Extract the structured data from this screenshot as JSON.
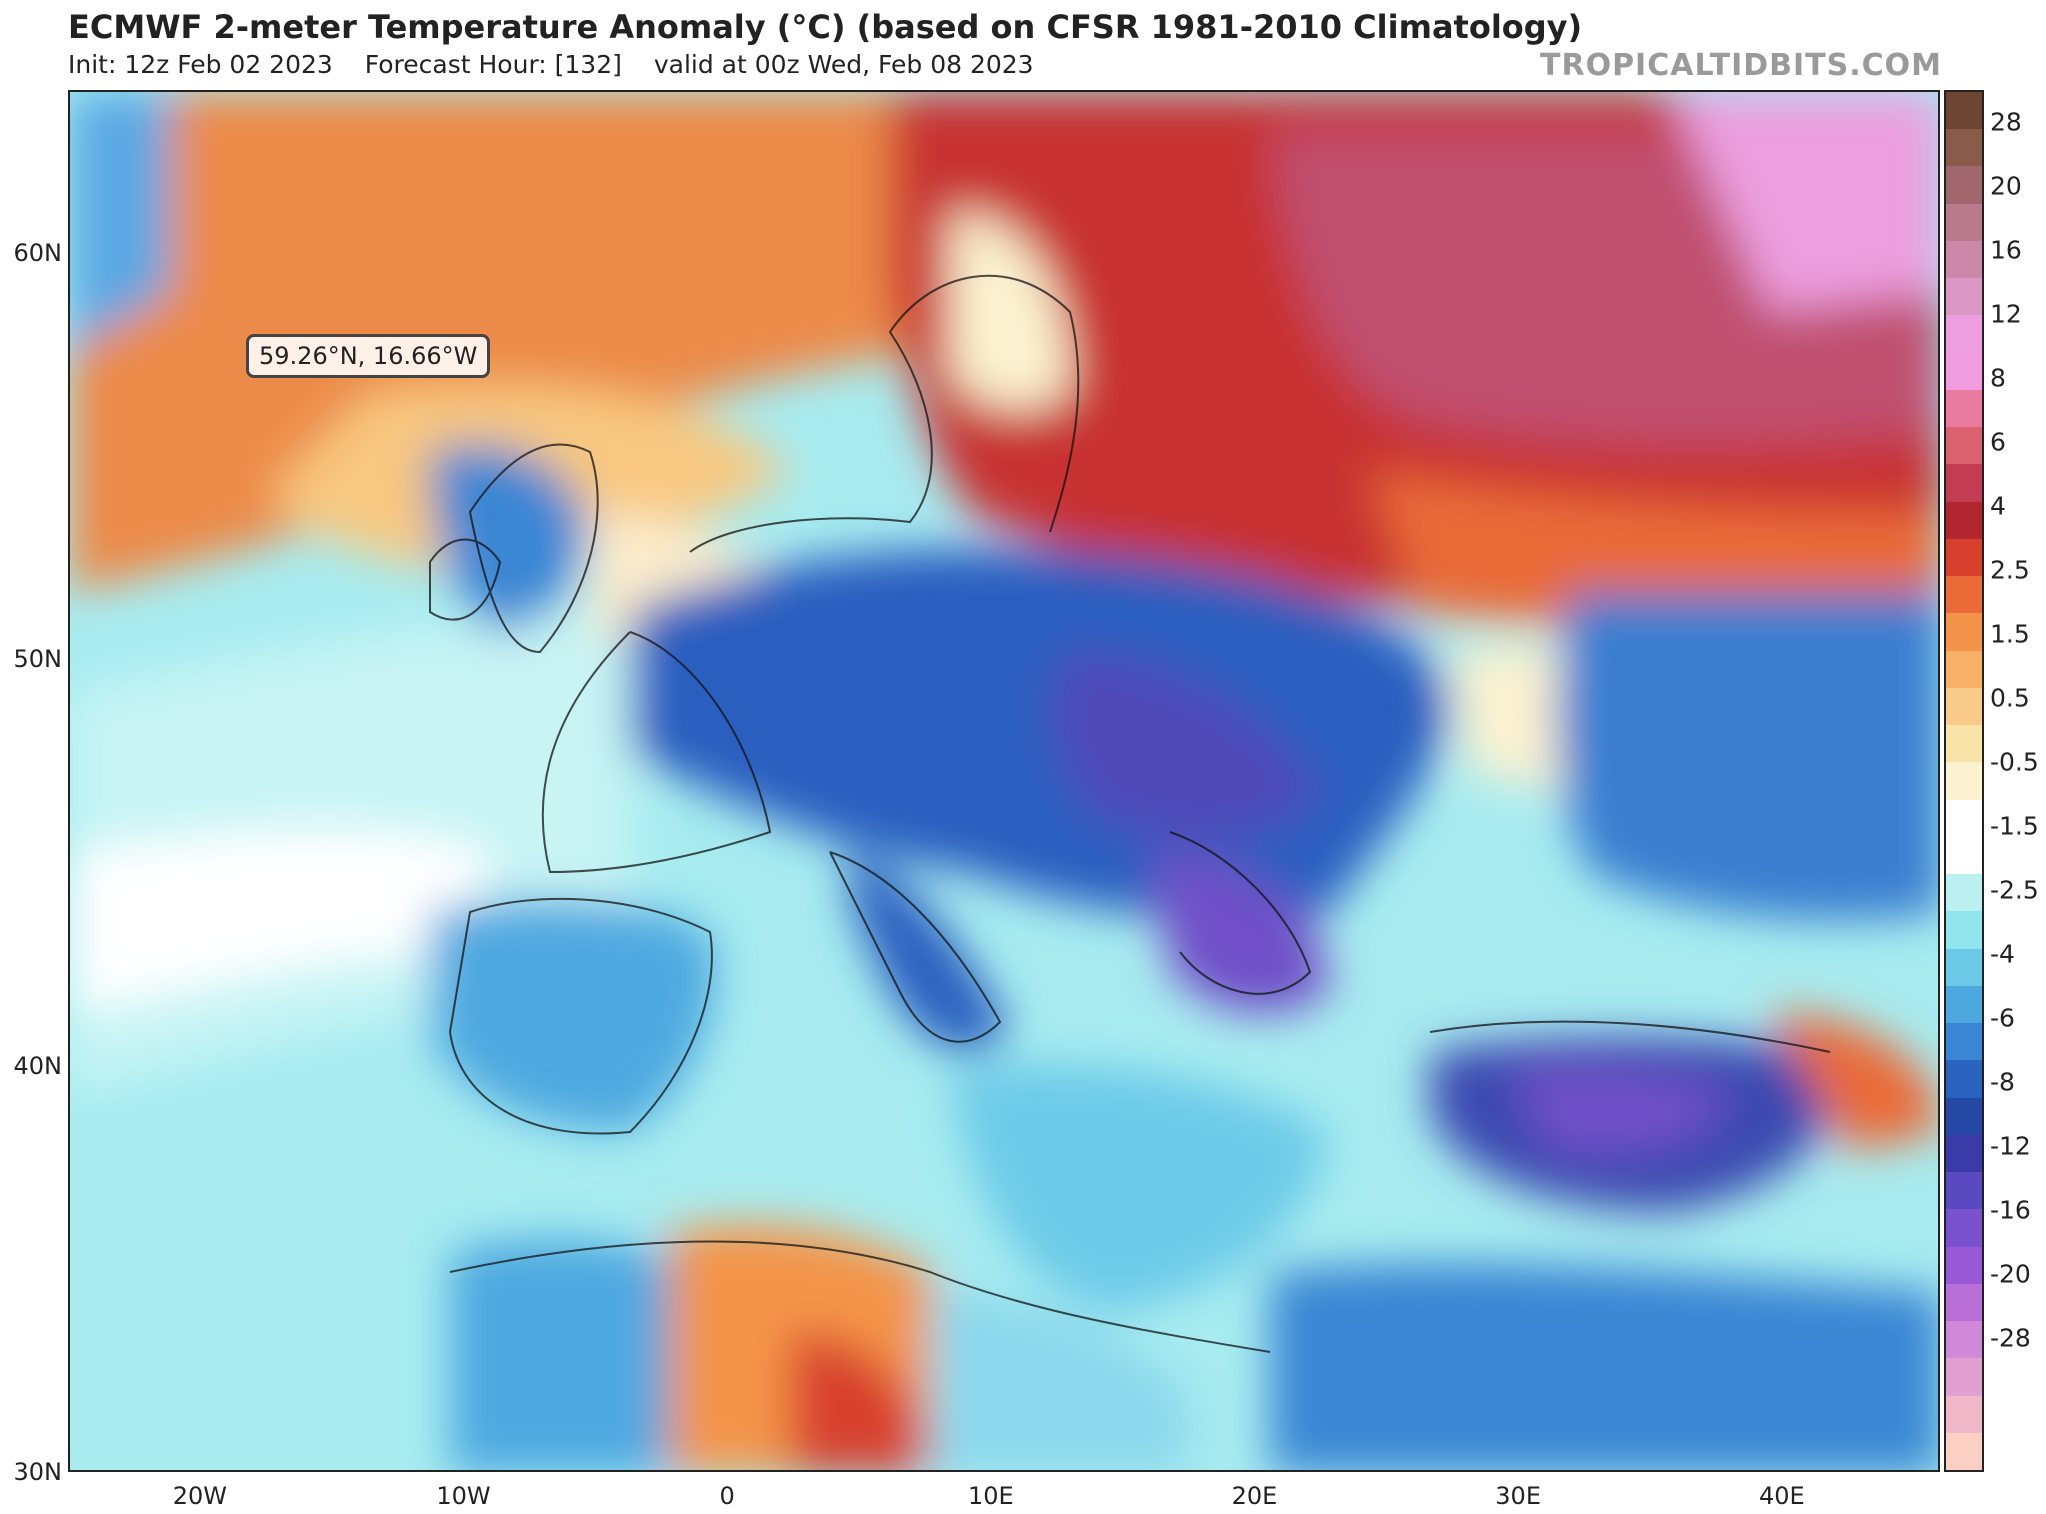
{
  "header": {
    "title": "ECMWF 2-meter Temperature Anomaly (°C) (based on CFSR 1981-2010 Climatology)",
    "init": "Init: 12z Feb 02 2023",
    "forecast_hour": "Forecast Hour: [132]",
    "valid": "valid at 00z Wed, Feb 08 2023",
    "brand": "TROPICALTIDBITS.COM"
  },
  "cursor_readout": "59.26°N, 16.66°W",
  "axes": {
    "lat_labels": [
      "60N",
      "50N",
      "40N",
      "30N"
    ],
    "lon_labels": [
      "20W",
      "10W",
      "0",
      "10E",
      "20E",
      "30E",
      "40E"
    ],
    "lat_range": [
      30,
      64
    ],
    "lon_range": [
      -25,
      46
    ]
  },
  "colorbar": {
    "labels": [
      "28",
      "20",
      "16",
      "12",
      "8",
      "6",
      "4",
      "2.5",
      "1.5",
      "0.5",
      "-0.5",
      "-1.5",
      "-2.5",
      "-4",
      "-6",
      "-8",
      "-12",
      "-16",
      "-20",
      "-28"
    ],
    "colors": [
      "#6e4530",
      "#8a5a4a",
      "#a0686e",
      "#b87a8c",
      "#cc88a8",
      "#dc98c4",
      "#ec9ede",
      "#f29ce0",
      "#e97aa0",
      "#dc6272",
      "#c23c54",
      "#b22630",
      "#d8402e",
      "#ea6a38",
      "#f4944a",
      "#f8b068",
      "#f8cc88",
      "#f8e4a8",
      "#fbf2d0",
      "#ffffff",
      "#ffffff",
      "#bcf0f0",
      "#90e4ec",
      "#6ccae8",
      "#4ea8e0",
      "#3a86d4",
      "#2a64c0",
      "#2448a4",
      "#3a3aa8",
      "#5a48c0",
      "#7a52d0",
      "#9a5ad8",
      "#b870d8",
      "#d088d8",
      "#e0a0d0",
      "#f0b8c8",
      "#fcd0c4"
    ]
  },
  "colors": {
    "ocean_base": "#a8ecf0",
    "warm": "#ec8a48",
    "very_warm": "#c83030",
    "extreme_warm": "#c05070",
    "cold": "#2c5ec0",
    "very_cold": "#7050c8",
    "neutral": "#ffffff"
  }
}
